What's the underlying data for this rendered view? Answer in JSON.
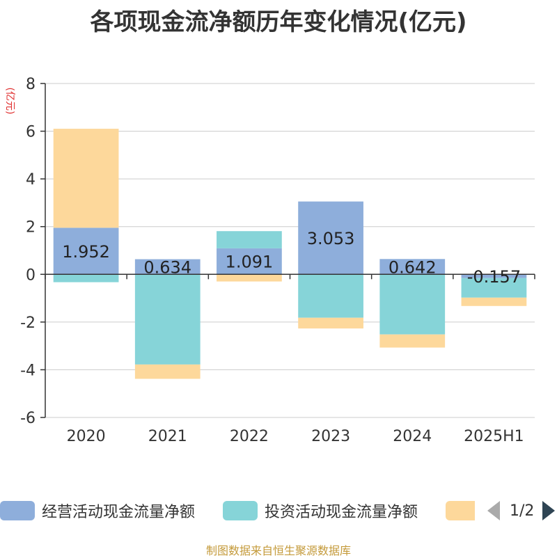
{
  "title": "各项现金流净额历年变化情况(亿元)",
  "source": "制图数据来自恒生聚源数据库",
  "legend": {
    "items": [
      {
        "label": "经营活动现金流量净额",
        "color": "#8eaedb"
      },
      {
        "label": "投资活动现金流量净额",
        "color": "#86d4d8"
      },
      {
        "label": "",
        "color": "#fdd89b"
      }
    ],
    "page": "1/2"
  },
  "chart_data": {
    "type": "bar",
    "stacked": true,
    "title": "各项现金流净额历年变化情况(亿元)",
    "ylabel": "(亿元)",
    "xlabel": "",
    "categories": [
      "2020",
      "2021",
      "2022",
      "2023",
      "2024",
      "2025H1"
    ],
    "ylim": [
      -6,
      8
    ],
    "yticks": [
      8,
      6,
      4,
      2,
      0,
      -2,
      -4,
      -6
    ],
    "grid": true,
    "legend_position": "bottom",
    "series": [
      {
        "name": "经营活动现金流量净额",
        "color": "#8eaedb",
        "values": [
          1.952,
          0.634,
          1.091,
          3.053,
          0.642,
          -0.157
        ],
        "labels": [
          "1.952",
          "0.634",
          "1.091",
          "3.053",
          "0.642",
          "-0.157"
        ]
      },
      {
        "color": "#86d4d8",
        "values": [
          -0.33,
          -3.78,
          0.72,
          -1.82,
          -2.52,
          -0.82
        ]
      },
      {
        "color": "#fdd89b",
        "values": [
          4.15,
          -0.6,
          -0.3,
          -0.45,
          -0.55,
          -0.35
        ]
      }
    ]
  }
}
